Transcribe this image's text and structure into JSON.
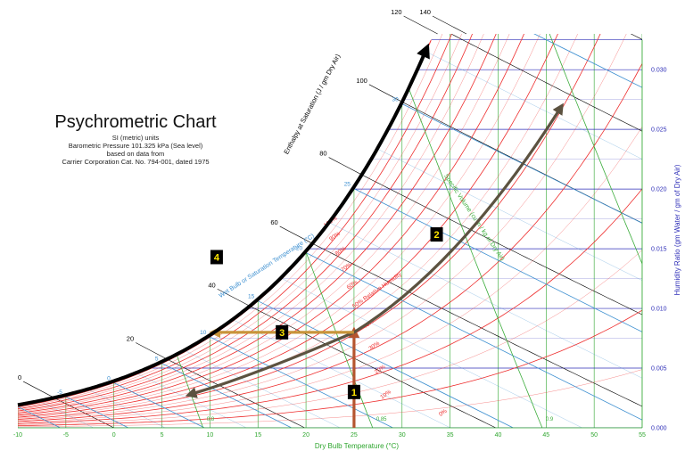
{
  "chart_data": {
    "type": "line",
    "title": "Psychrometric Chart",
    "subtitle_lines": [
      "SI (metric) units",
      "Barometric Pressure 101.325 kPa (Sea level)",
      "based on data from",
      "Carrier Corporation Cat. No. 794-001, dated 1975"
    ],
    "xlabel": "Dry Bulb Temperature (°C)",
    "ylabel": "Humidity Ratio (gm Water / gm of Dry Air)",
    "xlim": [
      -10,
      55
    ],
    "ylim": [
      0,
      0.033
    ],
    "x_ticks": [
      "-10",
      "-5",
      "0",
      "5",
      "10",
      "15",
      "20",
      "25",
      "30",
      "35",
      "40",
      "45",
      "50",
      "55"
    ],
    "y_ticks": [
      "0.000",
      "0.005",
      "0.010",
      "0.015",
      "0.020",
      "0.025",
      "0.030"
    ],
    "rh_curves": [
      10,
      20,
      30,
      40,
      50,
      60,
      70,
      80,
      90,
      100
    ],
    "rh_labels": [
      "0%",
      "10%",
      "20%",
      "30%",
      "40%",
      "50% Relative Humidity",
      "60%",
      "70%",
      "80%",
      "90%",
      "100%"
    ],
    "enthalpy_label": "Enthalpy at Saturation (J / gm Dry Air)",
    "enthalpy_ticks": [
      "0",
      "20",
      "40",
      "60",
      "80",
      "100",
      "120",
      "140"
    ],
    "wet_bulb_label": "Wet Bulb or Saturation Temperature (°C)",
    "wet_bulb_ticks": [
      "-5",
      "0",
      "5",
      "10",
      "15",
      "20",
      "25",
      "30",
      "35"
    ],
    "specific_volume_label": "Specific Volume (cu m / kg of Dry Air)",
    "specific_volume_lines": [
      0.8,
      0.85,
      0.9,
      0.95
    ],
    "specific_volume_ticks": [
      "0.8",
      "0.85",
      "0.9",
      "0.95"
    ],
    "grid": true,
    "processes": [
      {
        "label": "1",
        "color": "#b5552f",
        "from": [
          25,
          0.0
        ],
        "to": [
          25,
          0.008
        ]
      },
      {
        "label": "2",
        "color": "#5c5240",
        "from": [
          8,
          0.0028
        ],
        "to": [
          46.5,
          0.0268
        ],
        "via": [
          25,
          0.008
        ]
      },
      {
        "label": "3",
        "color": "#c8943a",
        "from": [
          25,
          0.008
        ],
        "to": [
          10.5,
          0.008
        ]
      },
      {
        "label": "4",
        "color": "#000000",
        "from": [
          -10,
          0.0016
        ],
        "to": [
          32.5,
          0.0325
        ],
        "follows": "saturation"
      }
    ],
    "colors": {
      "rh": "#ee2e2e",
      "dry_bulb": "#2ea62e",
      "humidity_ratio": "#2f2fb8",
      "wet_bulb": "#3c8fd0",
      "enthalpy": "#000000",
      "specific_volume": "#3cad3c"
    }
  }
}
